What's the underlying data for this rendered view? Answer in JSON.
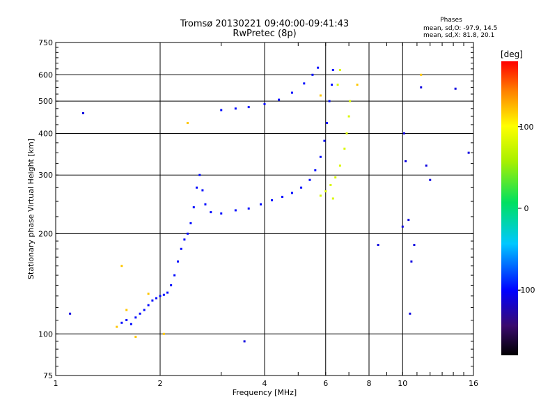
{
  "title_line1": "Tromsø 20130221 09:40:00-09:41:43",
  "title_line2": "RwPretec (8p)",
  "stats": {
    "header": "Phases",
    "o_line": "mean, sd,O: -97.9, 14.5",
    "x_line": "mean, sd,X:  81.8, 20.1"
  },
  "colorbar": {
    "title": "[deg]",
    "ticks": [
      {
        "value": 100,
        "label": "100"
      },
      {
        "value": 0,
        "label": "0"
      },
      {
        "value": -100,
        "label": "-100"
      }
    ],
    "range": [
      -180,
      180
    ]
  },
  "chart_data": {
    "type": "scatter",
    "title": "Tromsø 20130221 09:40:00-09:41:43",
    "subtitle": "RwPretec (8p)",
    "xlabel": "Frequency [MHz]",
    "ylabel": "Stationary phase Virtual Height [km]",
    "xscale": "log",
    "yscale": "log",
    "xlim": [
      1,
      16
    ],
    "ylim": [
      75,
      750
    ],
    "xticks": [
      1,
      2,
      4,
      6,
      8,
      10,
      16
    ],
    "yticks": [
      75,
      100,
      200,
      300,
      400,
      500,
      600,
      750
    ],
    "grid_x": [
      2,
      4,
      6,
      8,
      10
    ],
    "grid_y": [
      100,
      200,
      300,
      400,
      500,
      600
    ],
    "color_scale": "phase [deg], rainbow from -180 (black) to 180 (red)",
    "series": [
      {
        "points": [
          [
            1.55,
            108
          ],
          [
            1.6,
            110
          ],
          [
            1.65,
            107
          ],
          [
            1.7,
            112
          ],
          [
            1.75,
            115
          ],
          [
            1.8,
            118
          ],
          [
            1.85,
            122
          ],
          [
            1.9,
            126
          ],
          [
            1.95,
            128
          ],
          [
            2.0,
            130
          ],
          [
            2.05,
            131
          ],
          [
            2.1,
            133
          ],
          [
            2.15,
            140
          ],
          [
            2.2,
            150
          ],
          [
            2.25,
            165
          ],
          [
            2.3,
            180
          ],
          [
            2.35,
            192
          ],
          [
            2.4,
            200
          ],
          [
            2.45,
            215
          ],
          [
            2.5,
            240
          ],
          [
            2.55,
            275
          ],
          [
            2.6,
            300
          ],
          [
            2.65,
            270
          ],
          [
            2.7,
            245
          ],
          [
            2.8,
            232
          ],
          [
            3.0,
            230
          ],
          [
            3.3,
            235
          ],
          [
            3.6,
            238
          ],
          [
            3.9,
            245
          ],
          [
            4.2,
            252
          ],
          [
            4.5,
            258
          ],
          [
            4.8,
            265
          ],
          [
            5.1,
            275
          ],
          [
            5.4,
            290
          ],
          [
            5.6,
            310
          ],
          [
            5.8,
            340
          ],
          [
            5.95,
            380
          ],
          [
            6.05,
            430
          ],
          [
            6.15,
            500
          ],
          [
            6.25,
            560
          ],
          [
            6.3,
            620
          ],
          [
            3.0,
            470
          ],
          [
            3.3,
            475
          ],
          [
            3.6,
            480
          ],
          [
            4.0,
            490
          ],
          [
            4.4,
            505
          ],
          [
            4.8,
            530
          ],
          [
            5.2,
            565
          ],
          [
            5.5,
            600
          ],
          [
            5.7,
            630
          ]
        ],
        "phase": -98
      },
      {
        "points": [
          [
            5.8,
            260
          ],
          [
            6.0,
            268
          ],
          [
            6.2,
            280
          ],
          [
            6.4,
            295
          ],
          [
            6.6,
            320
          ],
          [
            6.8,
            360
          ],
          [
            6.9,
            400
          ],
          [
            7.0,
            450
          ],
          [
            7.05,
            500
          ],
          [
            6.5,
            560
          ],
          [
            6.6,
            620
          ],
          [
            6.3,
            255
          ]
        ],
        "phase": 82
      },
      {
        "points": [
          [
            1.5,
            105
          ],
          [
            1.6,
            118
          ],
          [
            1.7,
            98
          ],
          [
            1.85,
            132
          ],
          [
            2.05,
            100
          ],
          [
            1.55,
            160
          ],
          [
            2.4,
            430
          ],
          [
            5.8,
            520
          ],
          [
            7.4,
            560
          ],
          [
            11.3,
            600
          ]
        ],
        "phase": 120
      },
      {
        "points": [
          [
            10.1,
            400
          ],
          [
            10.2,
            330
          ],
          [
            10.4,
            220
          ],
          [
            10.6,
            165
          ],
          [
            11.3,
            550
          ],
          [
            11.7,
            320
          ],
          [
            12.0,
            290
          ],
          [
            14.2,
            545
          ],
          [
            15.5,
            350
          ],
          [
            10.5,
            115
          ],
          [
            1.2,
            460
          ],
          [
            1.1,
            115
          ],
          [
            3.5,
            95
          ],
          [
            8.5,
            185
          ],
          [
            10.8,
            185
          ],
          [
            10.0,
            210
          ]
        ],
        "phase": -110
      }
    ]
  }
}
